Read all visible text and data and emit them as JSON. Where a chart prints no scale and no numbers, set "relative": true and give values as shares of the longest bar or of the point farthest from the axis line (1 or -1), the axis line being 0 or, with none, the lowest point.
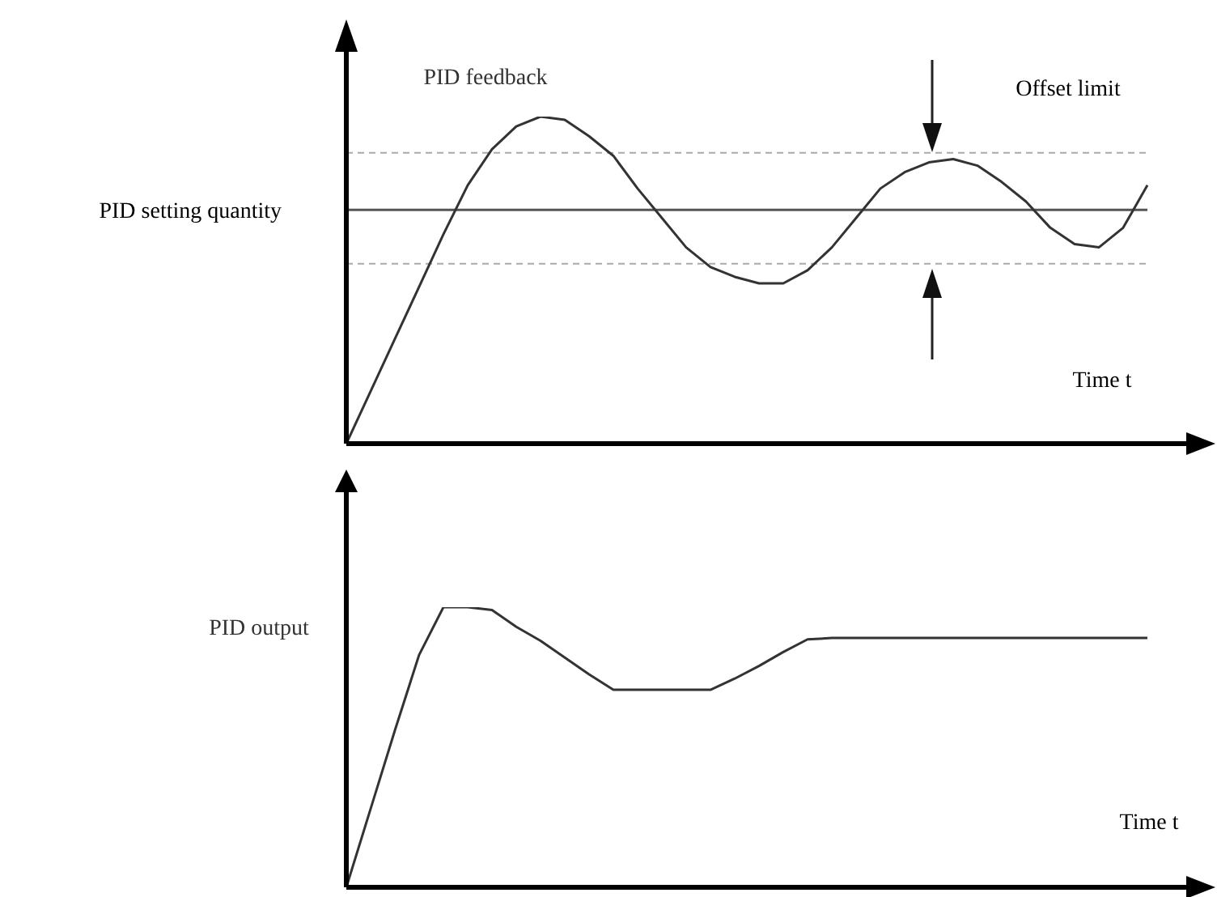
{
  "chart_data": [
    {
      "type": "line",
      "xlabel": "Time t",
      "relative": true,
      "marker": "none",
      "line_style": "solid",
      "categories": [
        null,
        null,
        null,
        null,
        null,
        null,
        null,
        null,
        null,
        null,
        null,
        null,
        null,
        null,
        null,
        null,
        null,
        null,
        null,
        null,
        null,
        null,
        null,
        null,
        null,
        null,
        null,
        null,
        null,
        null,
        null,
        null,
        null,
        null
      ],
      "series": [
        {
          "name": "PID feedback",
          "color": "#333333",
          "values": [
            0,
            0.16,
            0.32,
            0.48,
            0.64,
            0.79,
            0.9,
            0.97,
            1,
            0.99,
            0.94,
            0.88,
            0.78,
            0.69,
            0.6,
            0.54,
            0.51,
            0.49,
            0.49,
            0.53,
            0.6,
            0.69,
            0.78,
            0.83,
            0.86,
            0.87,
            0.85,
            0.8,
            0.74,
            0.66,
            0.61,
            0.6,
            0.66,
            0.79
          ]
        }
      ],
      "ref_lines": [
        {
          "axis": "y",
          "value": 0.715,
          "label": "PID setting quantity",
          "color": "#555555",
          "line_style": "solid"
        },
        {
          "axis": "y",
          "value": 0.889,
          "color": "#aaaaaa",
          "line_style": "dashed"
        },
        {
          "axis": "y",
          "value": 0.55,
          "color": "#aaaaaa",
          "line_style": "dashed"
        }
      ],
      "annotations": [
        "Offset limit"
      ]
    },
    {
      "type": "line",
      "xlabel": "Time t",
      "relative": true,
      "marker": "none",
      "line_style": "solid",
      "categories": [
        null,
        null,
        null,
        null,
        null,
        null,
        null,
        null,
        null,
        null,
        null,
        null,
        null,
        null,
        null,
        null,
        null,
        null,
        null,
        null,
        null,
        null,
        null,
        null,
        null,
        null,
        null,
        null,
        null,
        null,
        null,
        null,
        null,
        null
      ],
      "series": [
        {
          "name": "PID output",
          "color": "#333333",
          "values": [
            0,
            0.28,
            0.56,
            0.83,
            1,
            1,
            0.99,
            0.93,
            0.88,
            0.82,
            0.76,
            0.705,
            0.705,
            0.705,
            0.705,
            0.705,
            0.745,
            0.79,
            0.84,
            0.885,
            0.89,
            0.89,
            0.89,
            0.89,
            0.89,
            0.89,
            0.89,
            0.89,
            0.89,
            0.89,
            0.89,
            0.89,
            0.89,
            0.89
          ]
        }
      ]
    }
  ]
}
